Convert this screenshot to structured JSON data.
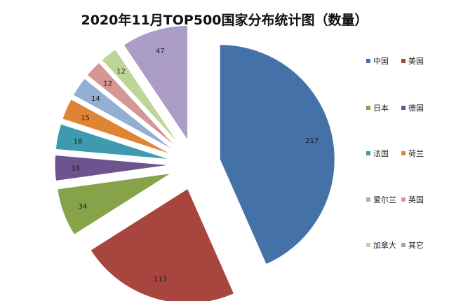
{
  "chart_data": {
    "type": "pie",
    "title": "2020年11月TOP500国家分布统计图（数量）",
    "categories": [
      "中国",
      "美国",
      "日本",
      "德国",
      "法国",
      "荷兰",
      "爱尔兰",
      "英国",
      "加拿大",
      "其它"
    ],
    "values": [
      217,
      113,
      34,
      18,
      18,
      15,
      14,
      12,
      12,
      47
    ],
    "colors": [
      "#4472A8",
      "#A9453F",
      "#86A34A",
      "#6E548F",
      "#3E9AAE",
      "#DF8434",
      "#94AED4",
      "#D59796",
      "#BFD597",
      "#AB9DC5"
    ],
    "legend_position": "right",
    "exploded": true
  }
}
